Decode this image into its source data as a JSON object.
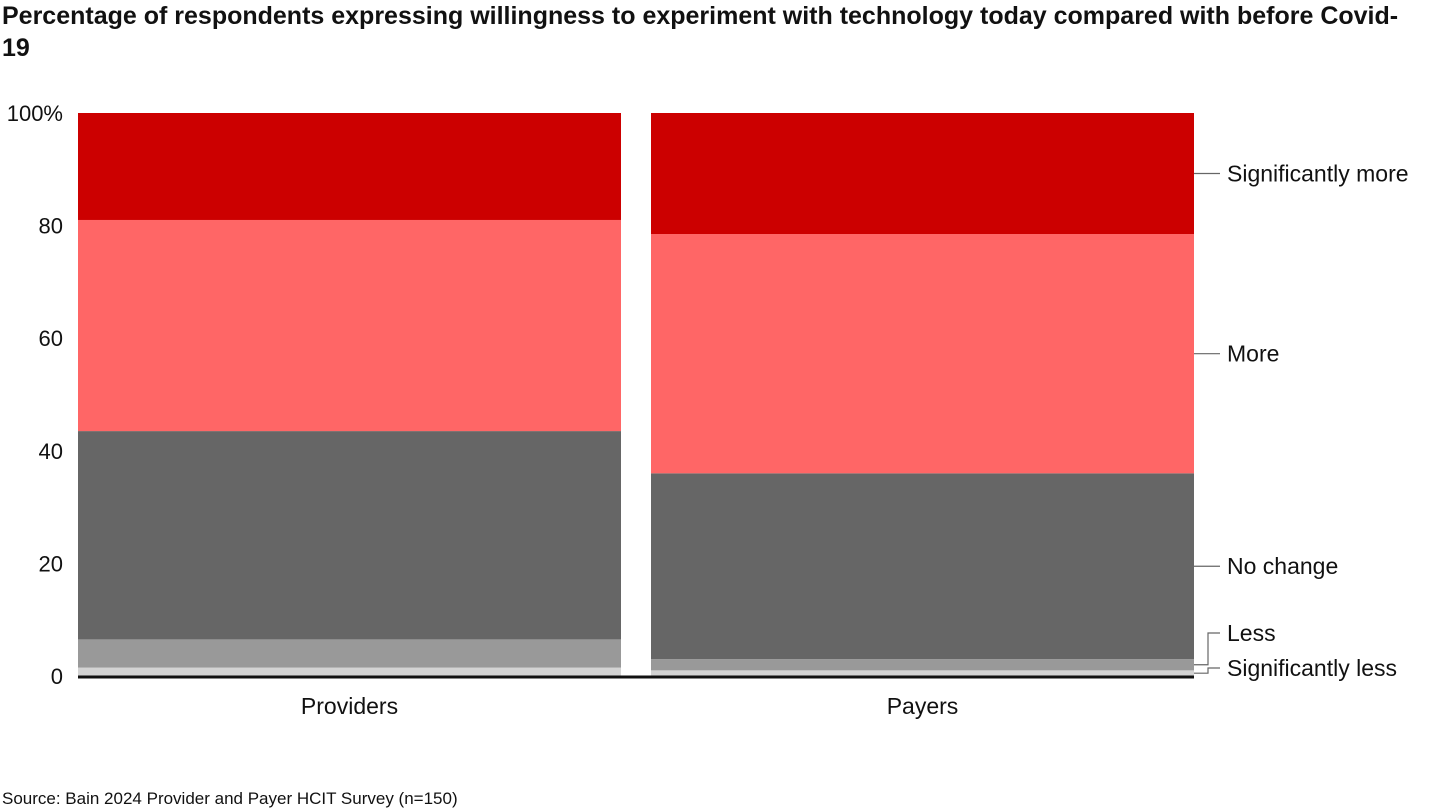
{
  "chart_data": {
    "type": "bar",
    "stacked": true,
    "title": "Percentage of respondents expressing willingness to experiment with technology today compared with before Covid-19",
    "source": "Source: Bain 2024 Provider and Payer HCIT Survey (n=150)",
    "categories": [
      "Providers",
      "Payers"
    ],
    "y_ticks": [
      "0",
      "20",
      "40",
      "60",
      "80",
      "100%"
    ],
    "ylim": [
      0,
      100
    ],
    "grid": false,
    "legend_placement": "right (direct labels)",
    "series": [
      {
        "name": "Significantly less",
        "color": "#d3d3d3",
        "values": [
          1.5,
          1
        ]
      },
      {
        "name": "Less",
        "color": "#999999",
        "values": [
          5,
          2
        ]
      },
      {
        "name": "No change",
        "color": "#666666",
        "values": [
          37,
          33
        ]
      },
      {
        "name": "More",
        "color": "#ff6666",
        "values": [
          37.5,
          42.5
        ]
      },
      {
        "name": "Significantly more",
        "color": "#cc0000",
        "values": [
          19,
          21.5
        ]
      }
    ]
  }
}
